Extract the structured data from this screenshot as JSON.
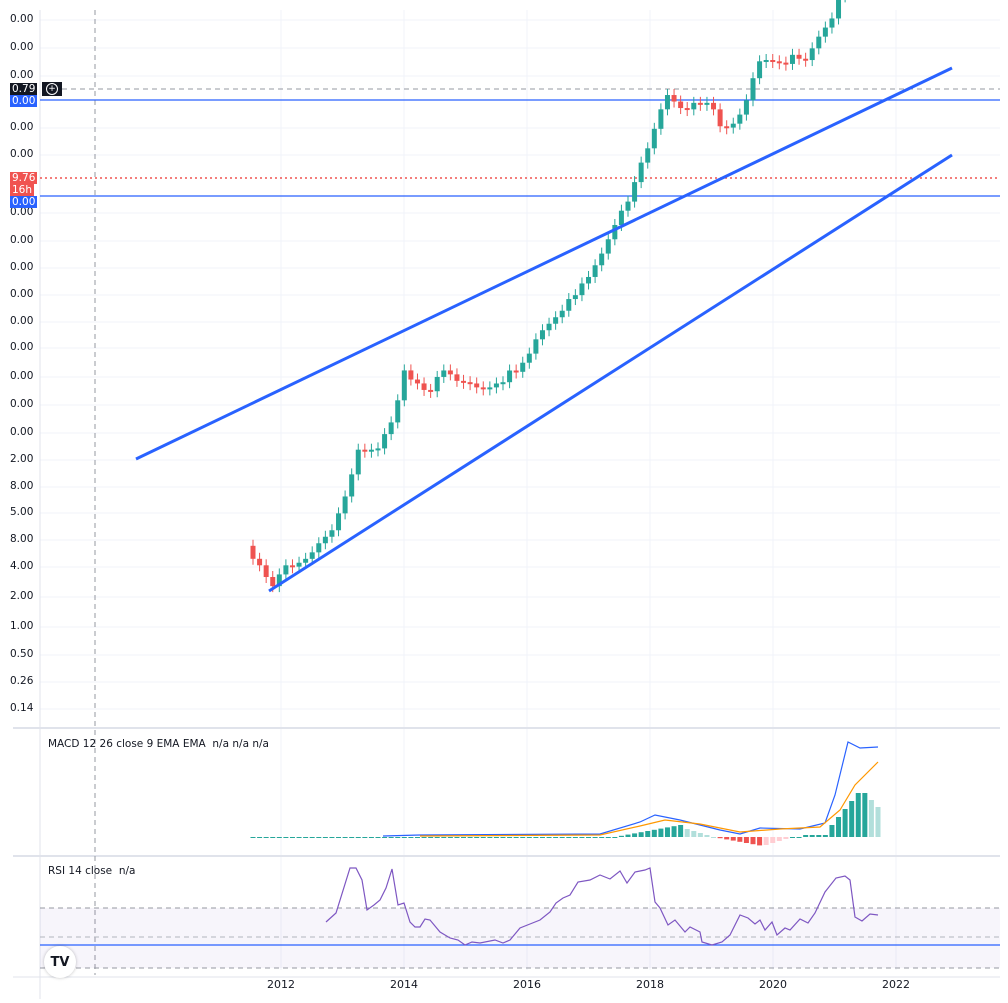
{
  "chart_data": {
    "type": "candlestick",
    "title": "",
    "price_axis": {
      "labels": [
        "0.00",
        "0.00",
        "0.00",
        "0.00",
        "0.00",
        "0.00",
        "0.00",
        "0.00",
        "0.00",
        "0.00",
        "0.00",
        "0.00",
        "0.00",
        "0.00",
        "2.00",
        "8.00",
        "5.00",
        "8.00",
        "4.00",
        "2.00",
        "1.00",
        "0.50",
        "0.26",
        "0.14"
      ],
      "scale": "log"
    },
    "price_tags": [
      {
        "text": "0.79",
        "color": "#131722",
        "kind": "crosshair"
      },
      {
        "text": "0.00",
        "color": "#2962ff",
        "kind": "horizontal-line-upper"
      },
      {
        "text": "9.76",
        "sub": "16h",
        "color": "#f05350",
        "kind": "last-price"
      },
      {
        "text": "0.00",
        "color": "#2962ff",
        "kind": "horizontal-line-lower"
      }
    ],
    "time_axis": {
      "labels": [
        "2012",
        "2014",
        "2016",
        "2018",
        "2020",
        "2022"
      ]
    },
    "drawings": [
      {
        "type": "trendline",
        "name": "upper-channel",
        "color": "#2962ff"
      },
      {
        "type": "trendline",
        "name": "lower-channel",
        "color": "#2962ff"
      },
      {
        "type": "hline",
        "name": "upper-horizontal",
        "color": "#2962ff"
      },
      {
        "type": "hline",
        "name": "lower-horizontal",
        "color": "#2962ff"
      }
    ],
    "candles_close_shape": [
      0.62,
      0.58,
      0.52,
      0.47,
      0.5,
      0.52,
      0.5,
      0.5,
      0.5,
      0.51,
      0.53,
      0.54,
      0.55,
      0.6,
      0.65,
      0.72,
      0.8,
      0.78,
      0.77,
      0.76,
      0.8,
      0.83,
      0.9,
      1.0,
      0.95,
      0.92,
      0.88,
      0.86,
      0.9,
      0.91,
      0.88,
      0.84,
      0.82,
      0.8,
      0.77,
      0.75,
      0.74,
      0.74,
      0.73,
      0.76,
      0.74,
      0.76,
      0.78,
      0.82,
      0.84,
      0.85,
      0.86,
      0.87,
      0.9,
      0.9,
      0.93,
      0.94,
      0.97,
      1.0,
      1.04,
      1.08,
      1.12,
      1.14,
      1.2,
      1.26,
      1.3,
      1.36,
      1.42,
      1.46,
      1.42,
      1.38,
      1.36,
      1.37,
      1.35,
      1.34,
      1.3,
      1.22,
      1.2,
      1.2,
      1.22,
      1.26,
      1.33,
      1.38,
      1.37,
      1.35,
      1.33,
      1.31,
      1.33,
      1.3,
      1.28,
      1.31,
      1.34,
      1.36,
      1.38,
      1.45,
      1.55,
      1.62,
      1.62,
      1.52,
      1.5,
      1.55
    ],
    "up_color": "#26a69a",
    "down_color": "#ef5350",
    "indicators": [
      {
        "name": "MACD",
        "title": "MACD 12 26 close 9 EMA EMA",
        "values": [
          "n/a",
          "n/a",
          "n/a"
        ],
        "series": [
          {
            "name": "MACD",
            "color": "#2962ff"
          },
          {
            "name": "Signal",
            "color": "#ff9800"
          },
          {
            "name": "Histogram",
            "color": "#26a69a"
          }
        ]
      },
      {
        "name": "RSI",
        "title": "RSI 14 close",
        "values": [
          "n/a"
        ],
        "line_color": "#7e57c2",
        "bands": [
          70,
          50,
          30
        ]
      }
    ]
  },
  "ui": {
    "logo": "TV"
  }
}
